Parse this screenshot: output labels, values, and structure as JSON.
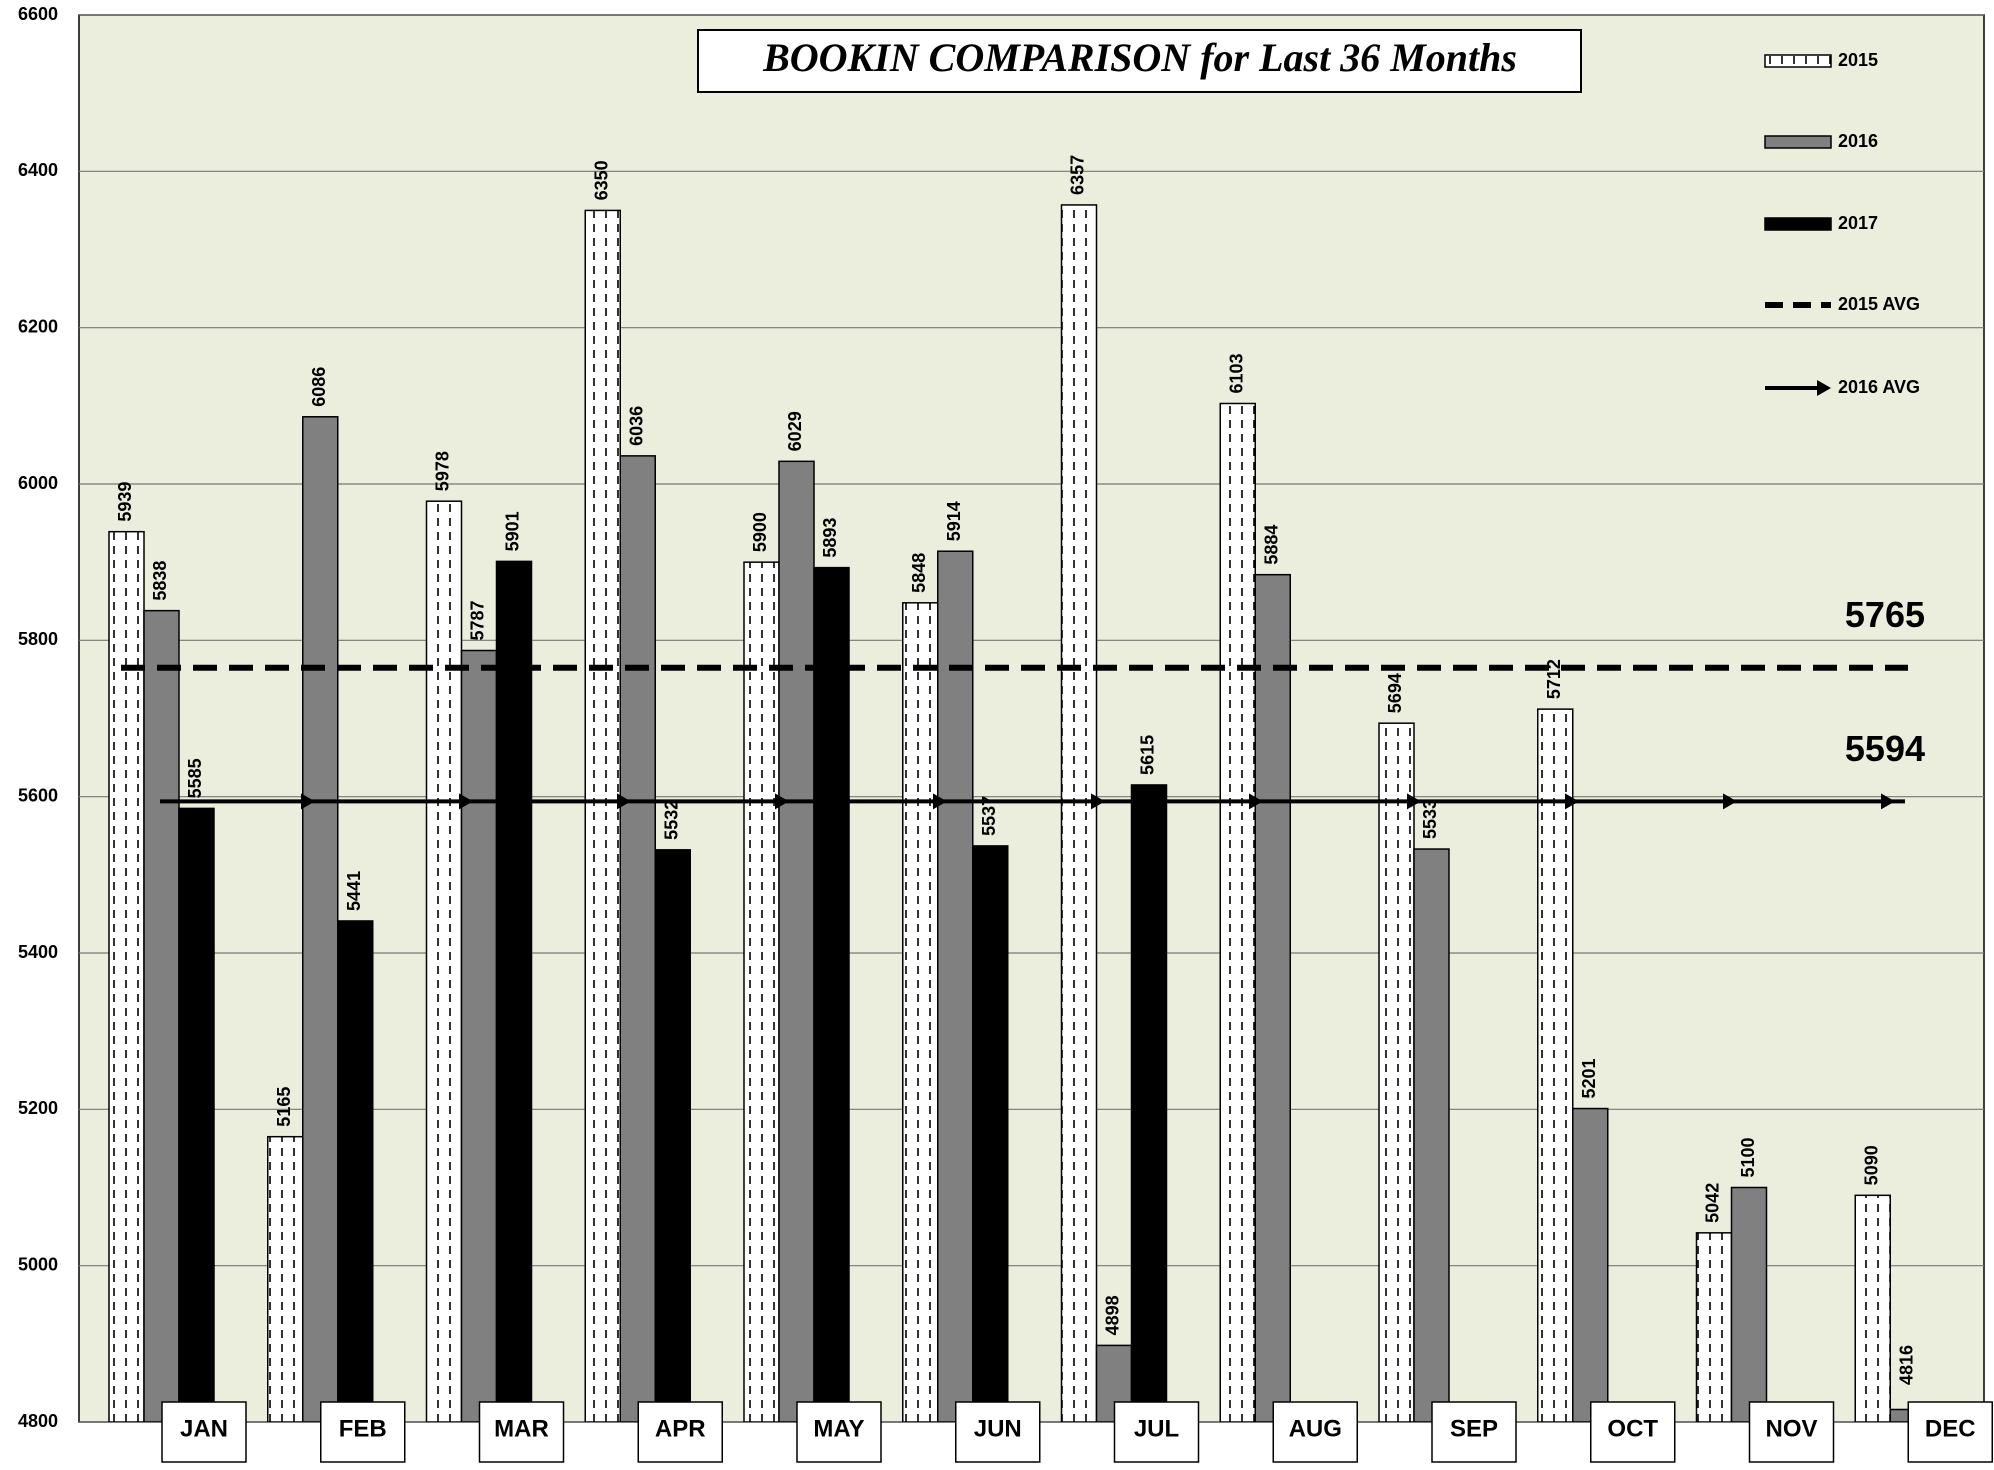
{
  "chart_data": {
    "type": "bar",
    "title": "BOOKIN COMPARISON for Last 36 Months",
    "categories": [
      "JAN",
      "FEB",
      "MAR",
      "APR",
      "MAY",
      "JUN",
      "JUL",
      "AUG",
      "SEP",
      "OCT",
      "NOV",
      "DEC"
    ],
    "series": [
      {
        "name": "2015",
        "color": "#ffffff",
        "pattern": "vertical-dashes",
        "values": [
          5939,
          5165,
          5978,
          6350,
          5900,
          5848,
          6357,
          6103,
          5694,
          5712,
          5042,
          5090
        ]
      },
      {
        "name": "2016",
        "color": "#808080",
        "values": [
          5838,
          6086,
          5787,
          6036,
          6029,
          5914,
          4898,
          5884,
          5533,
          5201,
          5100,
          4816
        ]
      },
      {
        "name": "2017",
        "color": "#000000",
        "values": [
          5585,
          5441,
          5901,
          5532,
          5893,
          5537,
          5615,
          null,
          null,
          null,
          null,
          null
        ]
      }
    ],
    "reference_lines": [
      {
        "name": "2015 AVG",
        "value": 5765,
        "style": "dashed",
        "color": "#000000"
      },
      {
        "name": "2016 AVG",
        "value": 5594,
        "style": "arrow",
        "color": "#000000"
      }
    ],
    "ylim": [
      4800,
      6600
    ],
    "yticks": [
      4800,
      5000,
      5200,
      5400,
      5600,
      5800,
      6000,
      6200,
      6400,
      6600
    ],
    "grid": true,
    "legend": "top-right"
  }
}
